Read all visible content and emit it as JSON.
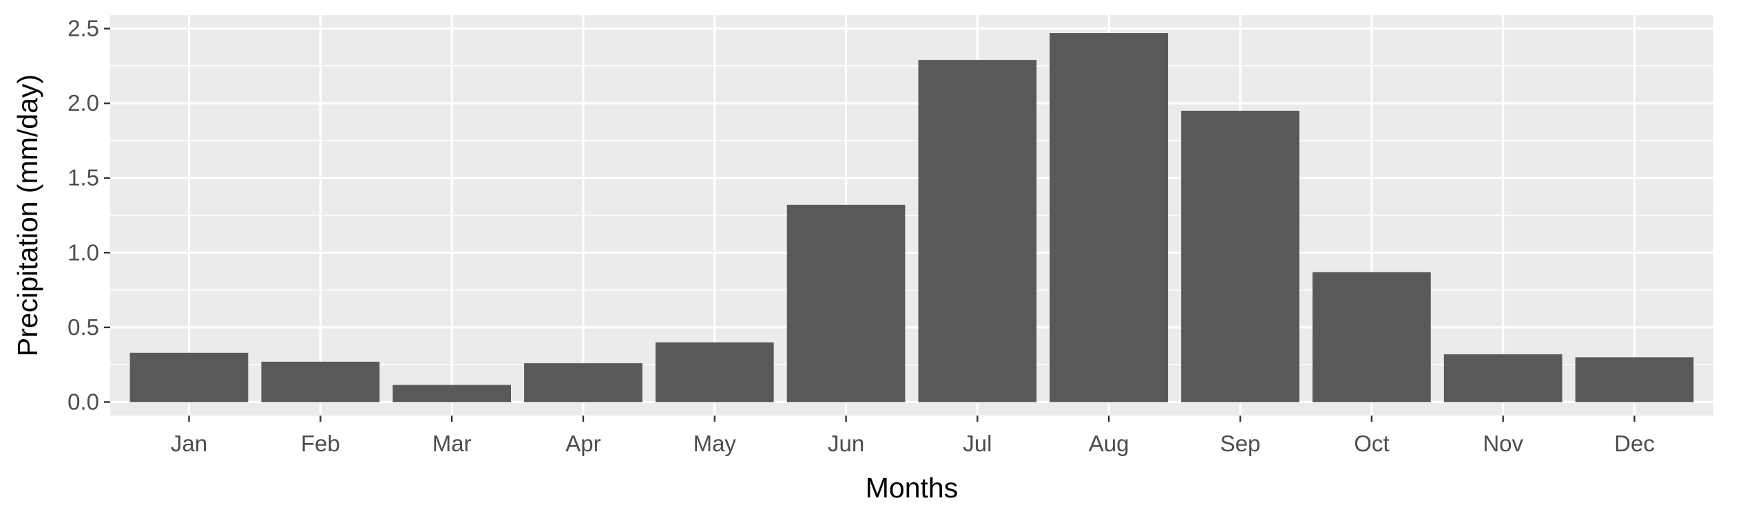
{
  "chart_data": {
    "type": "bar",
    "title": "",
    "xlabel": "Months",
    "ylabel": "Precipitation (mm/day)",
    "categories": [
      "Jan",
      "Feb",
      "Mar",
      "Apr",
      "May",
      "Jun",
      "Jul",
      "Aug",
      "Sep",
      "Oct",
      "Nov",
      "Dec"
    ],
    "values": [
      0.33,
      0.27,
      0.115,
      0.26,
      0.4,
      1.32,
      2.29,
      2.47,
      1.95,
      0.87,
      0.32,
      0.3
    ],
    "ylim": [
      -0.09,
      2.59
    ],
    "yticks": [
      0.0,
      0.5,
      1.0,
      1.5,
      2.0,
      2.5
    ],
    "ytick_labels": [
      "0.0",
      "0.5",
      "1.0",
      "1.5",
      "2.0",
      "2.5"
    ],
    "grid": true,
    "legend": "none",
    "bar_color": "#595959",
    "panel_color": "#EBEBEB",
    "grid_color": "#FFFFFF"
  }
}
